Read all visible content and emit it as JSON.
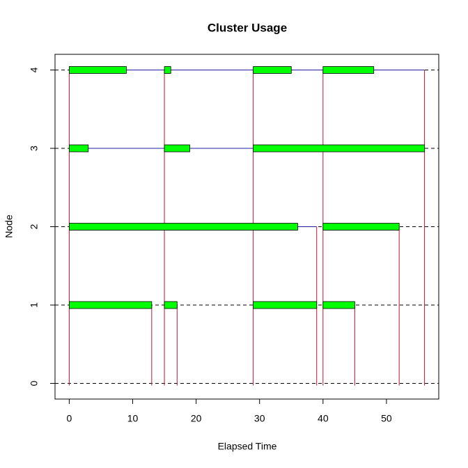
{
  "chart_data": {
    "type": "gantt",
    "title": "Cluster Usage",
    "x_label": "Elapsed Time",
    "y_label": "Node",
    "xlim": [
      -2.24,
      58.24
    ],
    "ylim": [
      -0.2,
      4.2
    ],
    "xticks": [
      0,
      10,
      20,
      30,
      40,
      50
    ],
    "yticks": [
      0,
      1,
      2,
      3,
      4
    ],
    "grid": true,
    "task_color": "#00ff00",
    "line_color": "#1c1ca0",
    "event_color": "#c8102e",
    "tasks": [
      {
        "node": 4,
        "start": 0,
        "end": 9
      },
      {
        "node": 4,
        "start": 15,
        "end": 16
      },
      {
        "node": 4,
        "start": 29,
        "end": 35
      },
      {
        "node": 4,
        "start": 40,
        "end": 48
      },
      {
        "node": 3,
        "start": 0,
        "end": 3
      },
      {
        "node": 3,
        "start": 15,
        "end": 19
      },
      {
        "node": 3,
        "start": 29,
        "end": 56
      },
      {
        "node": 2,
        "start": 0,
        "end": 36
      },
      {
        "node": 2,
        "start": 40,
        "end": 52
      },
      {
        "node": 1,
        "start": 0,
        "end": 13
      },
      {
        "node": 1,
        "start": 15,
        "end": 17
      },
      {
        "node": 1,
        "start": 29,
        "end": 39
      },
      {
        "node": 1,
        "start": 40,
        "end": 45
      }
    ],
    "lines": [
      {
        "node": 4,
        "start": 0,
        "end": 56
      },
      {
        "node": 3,
        "start": 0,
        "end": 56
      },
      {
        "node": 2,
        "start": 0,
        "end": 39
      }
    ],
    "events": [
      {
        "x": 0,
        "top": 4
      },
      {
        "x": 15,
        "top": 4
      },
      {
        "x": 29,
        "top": 4
      },
      {
        "x": 40,
        "top": 4
      },
      {
        "x": 56,
        "top": 4
      },
      {
        "x": 13,
        "top": 1
      },
      {
        "x": 17,
        "top": 1
      },
      {
        "x": 39,
        "top": 2
      },
      {
        "x": 45,
        "top": 1
      },
      {
        "x": 52,
        "top": 2
      }
    ]
  }
}
